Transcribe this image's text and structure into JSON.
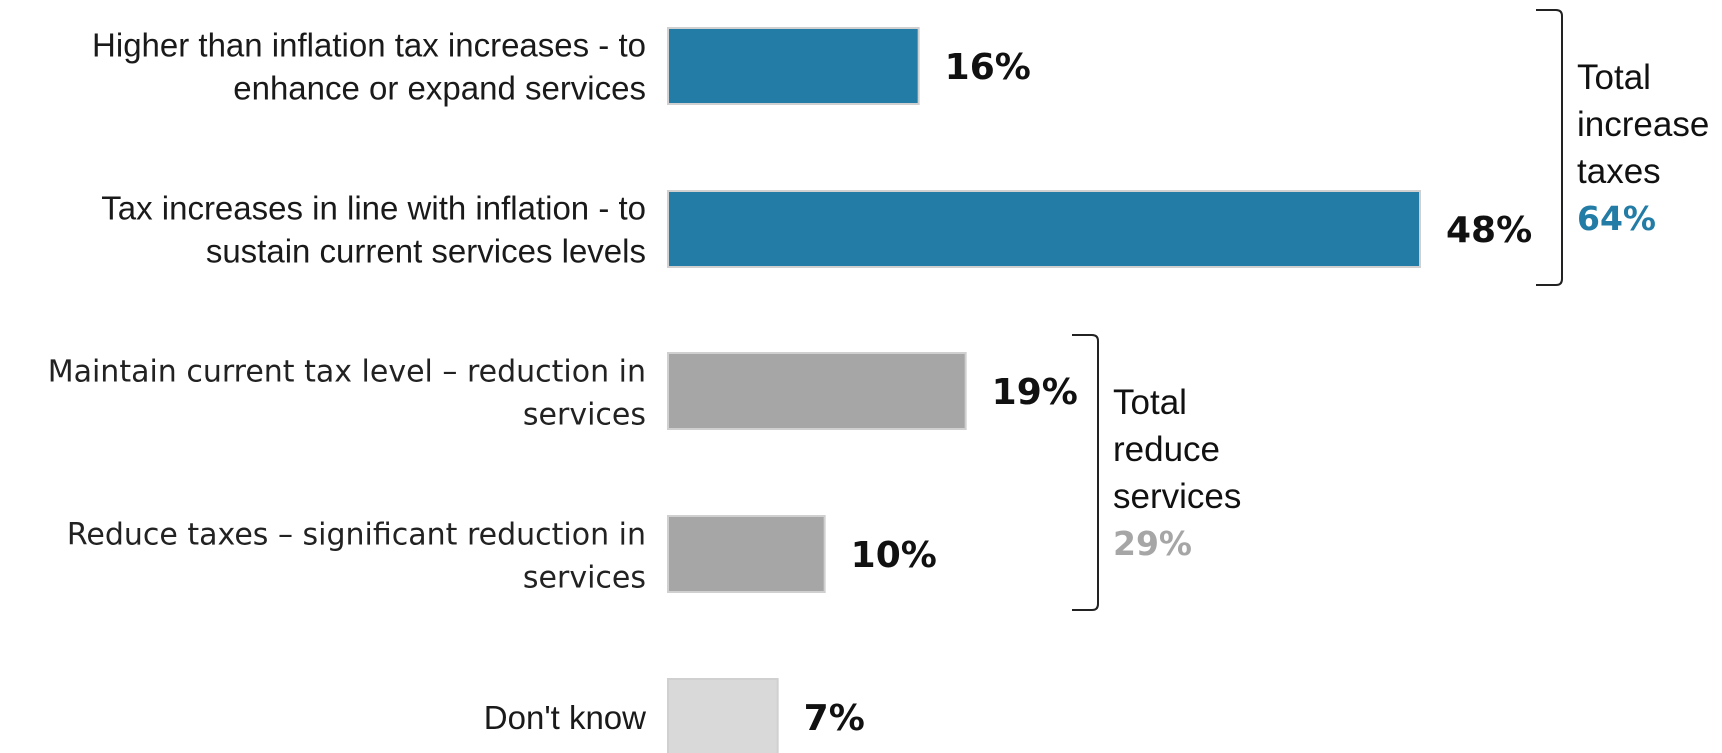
{
  "chart_data": {
    "type": "bar",
    "orientation": "horizontal",
    "categories": [
      [
        "Higher than inflation tax increases - to",
        "enhance or expand services"
      ],
      [
        "Tax increases in line with inflation - to",
        "sustain current services levels"
      ],
      [
        "Maintain current tax level – reduction in",
        "services"
      ],
      [
        "Reduce taxes – significant reduction in",
        "services"
      ],
      [
        "Don't know"
      ]
    ],
    "values": [
      16,
      48,
      19,
      10,
      7
    ],
    "value_labels": [
      "16%",
      "48%",
      "19%",
      "10%",
      "7%"
    ],
    "colors": [
      "#227ca6",
      "#227ca6",
      "#a6a6a6",
      "#a6a6a6",
      "#d9d9d9"
    ],
    "xlim": [
      0,
      50
    ],
    "grid": false,
    "groups": [
      {
        "label_lines": [
          "Total",
          "increase",
          "taxes"
        ],
        "total": "64%",
        "color": "#227ca6",
        "members": [
          0,
          1
        ]
      },
      {
        "label_lines": [
          "Total",
          "reduce",
          "services"
        ],
        "total": "29%",
        "color": "#a6a6a6",
        "members": [
          2,
          3
        ]
      }
    ]
  }
}
